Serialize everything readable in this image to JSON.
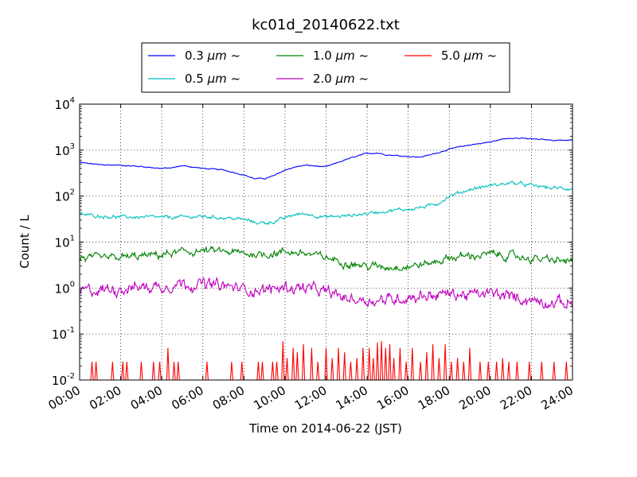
{
  "chart_data": {
    "type": "line",
    "title": "kc01d_20140622.txt",
    "xlabel": "Time on 2014-06-22 (JST)",
    "ylabel": "Count / L",
    "x_range_hours": [
      0,
      24
    ],
    "x_ticks": [
      "00:00",
      "02:00",
      "04:00",
      "06:00",
      "08:00",
      "10:00",
      "12:00",
      "14:00",
      "16:00",
      "18:00",
      "20:00",
      "22:00",
      "24:00"
    ],
    "y_scale": "log",
    "ylim": [
      0.01,
      10000
    ],
    "y_ticks": [
      {
        "base": "10",
        "exp": "-2",
        "value": 0.01
      },
      {
        "base": "10",
        "exp": "-1",
        "value": 0.1
      },
      {
        "base": "10",
        "exp": "0",
        "value": 1
      },
      {
        "base": "10",
        "exp": "1",
        "value": 10
      },
      {
        "base": "10",
        "exp": "2",
        "value": 100
      },
      {
        "base": "10",
        "exp": "3",
        "value": 1000
      },
      {
        "base": "10",
        "exp": "4",
        "value": 10000
      }
    ],
    "grid": true,
    "legend_position": "top-center",
    "series": [
      {
        "name": "0.3 μm ~",
        "color": "#0000ff",
        "noise": 0.008,
        "x": [
          0,
          1,
          2,
          3,
          4,
          4.5,
          5,
          6,
          7,
          8,
          8.5,
          9,
          9.5,
          10,
          10.5,
          11,
          12,
          13,
          14,
          14.5,
          15,
          16,
          16.5,
          17,
          18,
          19,
          20,
          20.5,
          21,
          22,
          23,
          24
        ],
        "y": [
          540,
          480,
          470,
          440,
          400,
          410,
          460,
          400,
          370,
          290,
          240,
          240,
          280,
          370,
          430,
          470,
          430,
          630,
          850,
          870,
          790,
          730,
          700,
          770,
          1050,
          1300,
          1500,
          1700,
          1850,
          1750,
          1650,
          1650
        ]
      },
      {
        "name": "0.5 μm ~",
        "color": "#00bfbf",
        "noise": 0.025,
        "x": [
          0,
          1,
          2,
          3,
          4,
          5,
          6,
          7,
          8,
          8.5,
          9,
          9.5,
          10,
          10.5,
          11,
          12,
          13,
          14,
          15,
          16,
          17,
          17.5,
          18,
          19,
          20,
          20.5,
          21,
          22,
          23,
          24
        ],
        "y": [
          40,
          37,
          35,
          35,
          34,
          35,
          36,
          34,
          31,
          27,
          26,
          28,
          33,
          40,
          41,
          35,
          37,
          42,
          48,
          52,
          60,
          72,
          100,
          140,
          170,
          180,
          195,
          170,
          150,
          145
        ]
      },
      {
        "name": "1.0 μm ~",
        "color": "#008000",
        "noise": 0.055,
        "x": [
          0,
          1,
          2,
          3,
          4,
          5,
          6,
          7,
          8,
          9,
          10,
          10.5,
          11,
          12,
          13,
          14,
          15,
          16,
          17,
          18,
          19,
          20,
          21,
          22,
          23,
          24
        ],
        "y": [
          4.6,
          4.3,
          4.6,
          4.9,
          5.3,
          6.0,
          6.4,
          6.2,
          5.6,
          5.4,
          6.2,
          6.0,
          5.6,
          4.6,
          3.6,
          3.0,
          2.9,
          3.0,
          3.4,
          4.6,
          5.0,
          5.4,
          5.0,
          4.4,
          4.0,
          3.8
        ]
      },
      {
        "name": "2.0 μm ~",
        "color": "#bf00bf",
        "noise": 0.085,
        "x": [
          0,
          1,
          2,
          3,
          4,
          5,
          6,
          7,
          8,
          9,
          10,
          11,
          12,
          13,
          14,
          15,
          16,
          17,
          18,
          19,
          20,
          21,
          22,
          23,
          24
        ],
        "y": [
          0.85,
          0.9,
          1.0,
          1.05,
          1.1,
          1.3,
          1.2,
          1.1,
          0.95,
          0.9,
          1.05,
          1.0,
          0.8,
          0.6,
          0.55,
          0.55,
          0.65,
          0.7,
          0.75,
          0.7,
          0.75,
          0.65,
          0.55,
          0.5,
          0.45
        ]
      },
      {
        "name": "5.0 μm ~",
        "color": "#ff0000",
        "noise": 0,
        "pulses": true,
        "x": [
          0.6,
          0.8,
          1.6,
          2.1,
          2.3,
          3.0,
          3.6,
          3.9,
          4.3,
          4.6,
          4.8,
          6.2,
          7.4,
          7.9,
          8.7,
          8.9,
          9.4,
          9.6,
          9.9,
          10.1,
          10.4,
          10.6,
          10.9,
          11.3,
          11.6,
          12.0,
          12.3,
          12.6,
          12.9,
          13.2,
          13.5,
          13.8,
          14.1,
          14.3,
          14.5,
          14.7,
          14.9,
          15.1,
          15.3,
          15.6,
          15.9,
          16.2,
          16.6,
          16.9,
          17.2,
          17.5,
          17.8,
          18.1,
          18.4,
          18.7,
          19.0,
          19.5,
          19.9,
          20.3,
          20.6,
          20.9,
          21.3,
          21.9,
          22.5,
          23.1,
          23.7
        ],
        "y": [
          0.025,
          0.025,
          0.025,
          0.025,
          0.025,
          0.025,
          0.025,
          0.025,
          0.05,
          0.025,
          0.025,
          0.025,
          0.025,
          0.025,
          0.025,
          0.025,
          0.025,
          0.025,
          0.07,
          0.03,
          0.05,
          0.04,
          0.06,
          0.05,
          0.025,
          0.05,
          0.03,
          0.05,
          0.04,
          0.025,
          0.03,
          0.05,
          0.05,
          0.03,
          0.065,
          0.07,
          0.05,
          0.06,
          0.03,
          0.05,
          0.025,
          0.05,
          0.025,
          0.04,
          0.06,
          0.03,
          0.06,
          0.025,
          0.03,
          0.025,
          0.05,
          0.025,
          0.025,
          0.025,
          0.03,
          0.025,
          0.025,
          0.025,
          0.025,
          0.025,
          0.025
        ]
      }
    ]
  },
  "legend": {
    "rows": [
      [
        {
          "series": 0,
          "prefix": "0.3 ",
          "unit": "μm",
          "suffix": " ~"
        },
        {
          "series": 2,
          "prefix": "1.0 ",
          "unit": "μm",
          "suffix": " ~"
        },
        {
          "series": 4,
          "prefix": "5.0 ",
          "unit": "μm",
          "suffix": " ~"
        }
      ],
      [
        {
          "series": 1,
          "prefix": "0.5 ",
          "unit": "μm",
          "suffix": " ~"
        },
        {
          "series": 3,
          "prefix": "2.0 ",
          "unit": "μm",
          "suffix": " ~"
        }
      ]
    ]
  }
}
